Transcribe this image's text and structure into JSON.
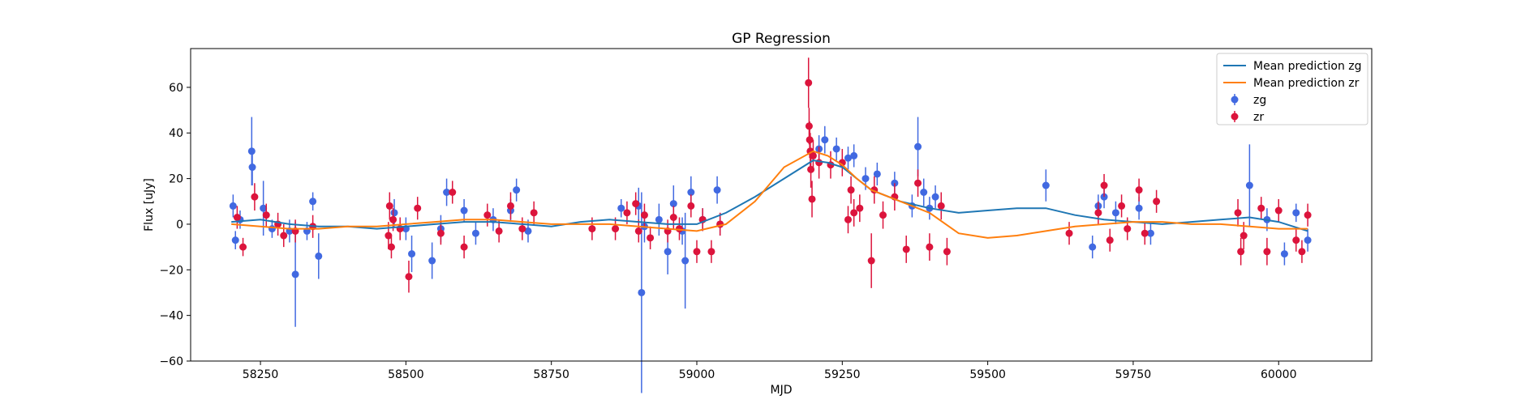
{
  "chart_data": {
    "type": "scatter",
    "title": "GP Regression",
    "xlabel": "MJD",
    "ylabel": "Flux [uJy]",
    "xlim": [
      58130,
      60160
    ],
    "ylim": [
      -60,
      77
    ],
    "xticks": [
      58250,
      58500,
      58750,
      59000,
      59250,
      59500,
      59750,
      60000
    ],
    "yticks": [
      -60,
      -40,
      -20,
      0,
      20,
      40,
      60
    ],
    "grid": false,
    "legend_position": "top-right",
    "legend": [
      {
        "label": "Mean prediction zg",
        "kind": "line",
        "color": "#1f77b4"
      },
      {
        "label": "Mean prediction zr",
        "kind": "line",
        "color": "#ff7f0e"
      },
      {
        "label": "zg",
        "kind": "errorbar",
        "color": "#4169e1"
      },
      {
        "label": "zr",
        "kind": "errorbar",
        "color": "#dc143c"
      }
    ],
    "series": [
      {
        "name": "Mean prediction zg",
        "kind": "line",
        "color": "#1f77b4",
        "x": [
          58200,
          58250,
          58300,
          58350,
          58400,
          58450,
          58500,
          58550,
          58600,
          58650,
          58700,
          58750,
          58800,
          58850,
          58900,
          58950,
          59000,
          59050,
          59100,
          59150,
          59200,
          59225,
          59250,
          59275,
          59300,
          59350,
          59400,
          59450,
          59500,
          59550,
          59600,
          59650,
          59700,
          59750,
          59800,
          59850,
          59900,
          59950,
          60000,
          60050
        ],
        "y": [
          1,
          2,
          0,
          -1,
          -1,
          -2,
          -1,
          0,
          1,
          1,
          0,
          -1,
          1,
          2,
          1,
          0,
          0,
          5,
          12,
          20,
          28,
          27,
          25,
          20,
          15,
          10,
          7,
          5,
          6,
          7,
          7,
          4,
          2,
          1,
          0,
          1,
          2,
          3,
          1,
          -3
        ]
      },
      {
        "name": "Mean prediction zr",
        "kind": "line",
        "color": "#ff7f0e",
        "x": [
          58200,
          58250,
          58300,
          58350,
          58400,
          58450,
          58500,
          58550,
          58600,
          58650,
          58700,
          58750,
          58800,
          58850,
          58900,
          58950,
          59000,
          59050,
          59100,
          59150,
          59200,
          59225,
          59250,
          59275,
          59300,
          59350,
          59400,
          59450,
          59500,
          59550,
          59600,
          59650,
          59700,
          59750,
          59800,
          59850,
          59900,
          59950,
          60000,
          60050
        ],
        "y": [
          0,
          -1,
          -2,
          -2,
          -1,
          -1,
          0,
          1,
          2,
          2,
          1,
          0,
          0,
          0,
          -1,
          -2,
          -3,
          0,
          10,
          25,
          32,
          30,
          26,
          20,
          15,
          10,
          5,
          -4,
          -6,
          -5,
          -3,
          -1,
          0,
          1,
          1,
          0,
          0,
          -1,
          -2,
          -2
        ]
      },
      {
        "name": "zg",
        "kind": "errorbar",
        "color": "#4169e1",
        "x": [
          58203,
          58207,
          58215,
          58235,
          58236,
          58255,
          58270,
          58300,
          58310,
          58330,
          58340,
          58350,
          58480,
          58500,
          58510,
          58545,
          58560,
          58570,
          58600,
          58620,
          58650,
          58680,
          58690,
          58710,
          58870,
          58900,
          58905,
          58910,
          58935,
          58950,
          58960,
          58975,
          58980,
          58990,
          59010,
          59035,
          59040,
          59210,
          59220,
          59240,
          59260,
          59270,
          59290,
          59310,
          59340,
          59370,
          59380,
          59390,
          59400,
          59410,
          59600,
          59680,
          59690,
          59700,
          59720,
          59760,
          59780,
          59950,
          59980,
          60010,
          60030,
          60050
        ],
        "y": [
          8,
          -7,
          2,
          32,
          25,
          7,
          -2,
          -3,
          -22,
          -3,
          10,
          -14,
          5,
          -2,
          -13,
          -16,
          -2,
          14,
          6,
          -4,
          2,
          6,
          15,
          -3,
          7,
          8,
          -30,
          -1,
          2,
          -12,
          9,
          -3,
          -16,
          14,
          2,
          15,
          0,
          33,
          37,
          33,
          29,
          30,
          20,
          22,
          18,
          8,
          34,
          14,
          7,
          12,
          17,
          -10,
          8,
          12,
          5,
          7,
          -4,
          17,
          2,
          -13,
          5,
          -7
        ],
        "yerr": [
          5,
          4,
          4,
          15,
          8,
          12,
          4,
          5,
          23,
          4,
          4,
          10,
          6,
          5,
          8,
          8,
          6,
          6,
          5,
          5,
          5,
          5,
          5,
          5,
          4,
          8,
          44,
          7,
          7,
          10,
          8,
          6,
          21,
          7,
          5,
          6,
          5,
          6,
          6,
          5,
          5,
          5,
          5,
          5,
          5,
          5,
          13,
          6,
          5,
          5,
          7,
          5,
          5,
          5,
          5,
          5,
          5,
          18,
          5,
          5,
          4,
          5
        ]
      },
      {
        "name": "zr",
        "kind": "errorbar",
        "color": "#dc143c",
        "x": [
          58210,
          58220,
          58240,
          58260,
          58280,
          58290,
          58310,
          58340,
          58470,
          58472,
          58475,
          58478,
          58490,
          58505,
          58520,
          58560,
          58580,
          58600,
          58640,
          58660,
          58680,
          58700,
          58720,
          58820,
          58860,
          58880,
          58895,
          58900,
          58910,
          58920,
          58950,
          58960,
          58970,
          58990,
          59000,
          59010,
          59025,
          59040,
          59192,
          59193,
          59194,
          59195,
          59196,
          59198,
          59200,
          59210,
          59230,
          59250,
          59260,
          59265,
          59270,
          59280,
          59300,
          59305,
          59320,
          59340,
          59360,
          59380,
          59400,
          59420,
          59430,
          59640,
          59690,
          59700,
          59710,
          59730,
          59740,
          59760,
          59770,
          59790,
          59930,
          59935,
          59940,
          59970,
          59980,
          60000,
          60030,
          60040,
          60050
        ],
        "y": [
          3,
          -10,
          12,
          4,
          0,
          -5,
          -3,
          -1,
          -5,
          8,
          -10,
          2,
          -2,
          -23,
          7,
          -4,
          14,
          -10,
          4,
          -3,
          8,
          -2,
          5,
          -2,
          -2,
          5,
          9,
          -3,
          4,
          -6,
          -3,
          3,
          -2,
          8,
          -12,
          2,
          -12,
          0,
          62,
          43,
          37,
          32,
          24,
          11,
          30,
          27,
          26,
          27,
          2,
          15,
          5,
          7,
          -16,
          15,
          4,
          12,
          -11,
          18,
          -10,
          8,
          -12,
          -4,
          5,
          17,
          -7,
          8,
          -2,
          15,
          -4,
          10,
          5,
          -12,
          -5,
          7,
          -12,
          6,
          -7,
          -12,
          4
        ],
        "yerr": [
          5,
          4,
          6,
          5,
          5,
          5,
          5,
          5,
          6,
          6,
          5,
          5,
          5,
          7,
          5,
          5,
          5,
          5,
          5,
          5,
          6,
          5,
          5,
          5,
          5,
          5,
          5,
          5,
          5,
          5,
          5,
          5,
          5,
          5,
          5,
          5,
          5,
          5,
          11,
          8,
          8,
          8,
          8,
          8,
          7,
          7,
          6,
          6,
          6,
          6,
          6,
          6,
          12,
          6,
          6,
          6,
          6,
          6,
          6,
          6,
          6,
          5,
          5,
          5,
          5,
          5,
          5,
          5,
          5,
          5,
          6,
          6,
          6,
          5,
          6,
          5,
          5,
          5,
          5
        ]
      }
    ]
  }
}
